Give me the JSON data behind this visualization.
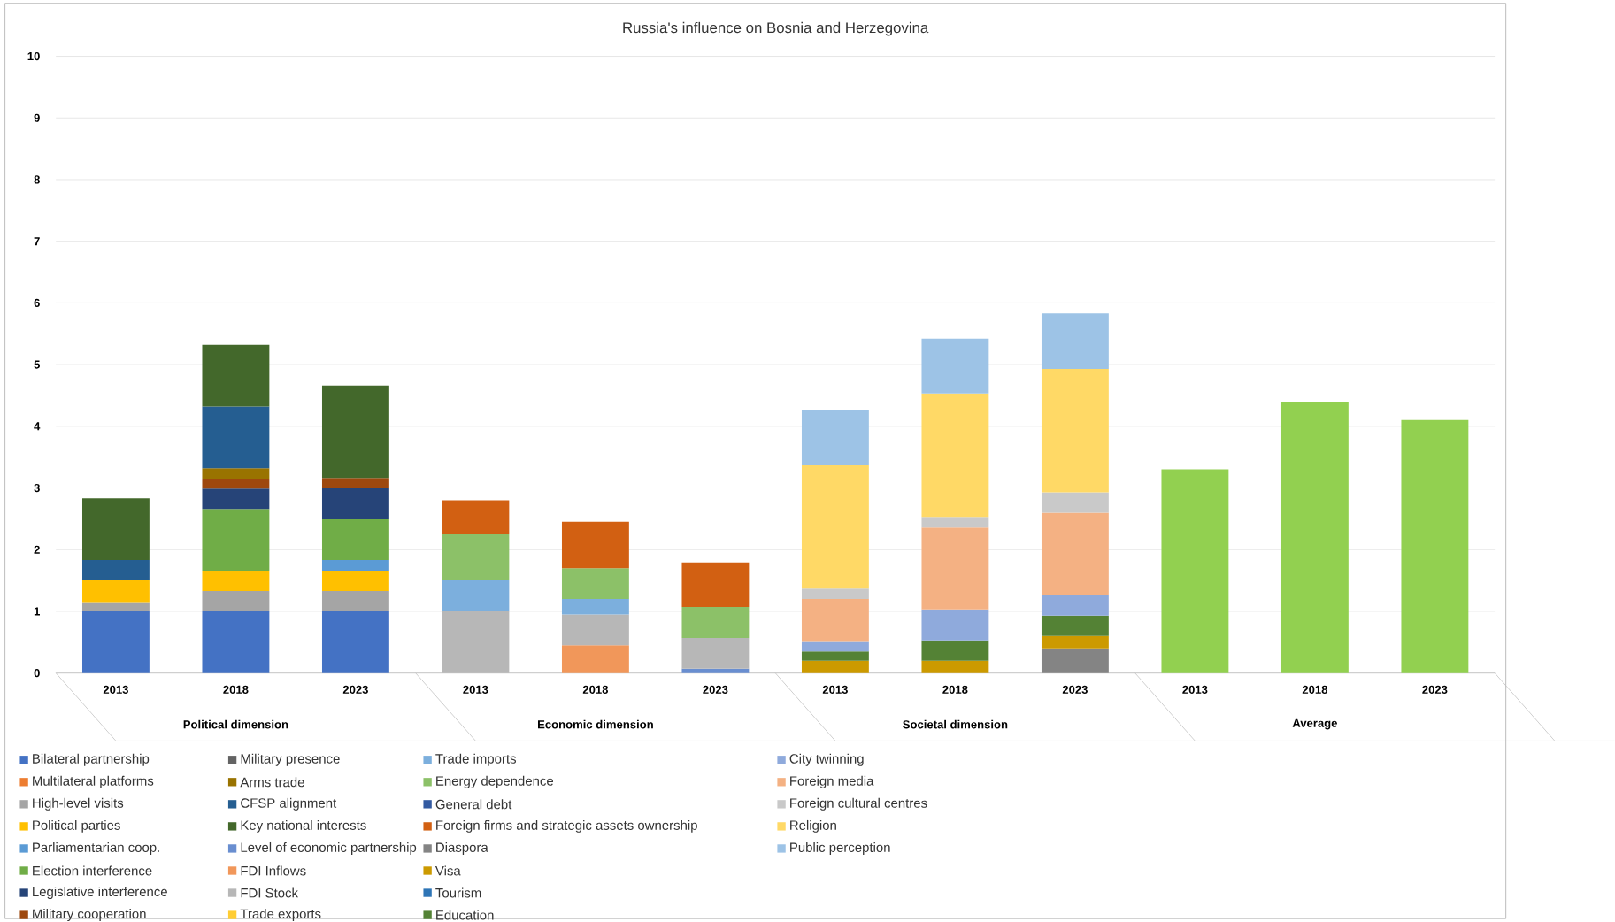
{
  "chart_data": {
    "type": "bar",
    "title": "Russia's influence on Bosnia and Herzegovina",
    "stacked": true,
    "grid": "y",
    "legend": "bottom",
    "categories": [
      "2013",
      "2018",
      "2023",
      "2013",
      "2018",
      "2023",
      "2013",
      "2018",
      "2023",
      "2013",
      "2018",
      "2023"
    ],
    "annotations": [
      "Political dimension",
      "Economic dimension",
      "Societal dimension",
      "Average"
    ],
    "ylim": [
      0,
      10
    ],
    "yticks": [
      0,
      1,
      2,
      3,
      4,
      5,
      6,
      7,
      8,
      9,
      10
    ],
    "series": [
      {
        "name": "Bilateral partnership",
        "color": "#4472c4",
        "values": [
          1,
          1,
          1,
          null,
          null,
          null,
          null,
          null,
          null,
          null,
          null,
          null
        ]
      },
      {
        "name": "Multilateral platforms",
        "color": "#ed7d31",
        "values": [
          null,
          null,
          null,
          null,
          null,
          null,
          null,
          null,
          null,
          null,
          null,
          null
        ]
      },
      {
        "name": "High-level visits",
        "color": "#a5a5a5",
        "values": [
          0.15,
          0.33,
          0.33,
          null,
          null,
          null,
          null,
          null,
          null,
          null,
          null,
          null
        ]
      },
      {
        "name": "Political parties",
        "color": "#ffc000",
        "values": [
          0.35,
          0.33,
          0.33,
          null,
          null,
          null,
          null,
          null,
          null,
          null,
          null,
          null
        ]
      },
      {
        "name": "Parliamentarian coop.",
        "color": "#5b9bd5",
        "values": [
          null,
          null,
          0.17,
          null,
          null,
          null,
          null,
          null,
          null,
          null,
          null,
          null
        ]
      },
      {
        "name": "Election interference",
        "color": "#70ad47",
        "values": [
          null,
          1.0,
          0.67,
          null,
          null,
          null,
          null,
          null,
          null,
          null,
          null,
          null
        ]
      },
      {
        "name": "Legislative interference",
        "color": "#264478",
        "values": [
          null,
          0.33,
          0.5,
          null,
          null,
          null,
          null,
          null,
          null,
          null,
          null,
          null
        ]
      },
      {
        "name": "Military  cooperation",
        "color": "#9e480e",
        "values": [
          null,
          0.16,
          0.16,
          null,
          null,
          null,
          null,
          null,
          null,
          null,
          null,
          null
        ]
      },
      {
        "name": "Military presence",
        "color": "#636363",
        "values": [
          null,
          null,
          null,
          null,
          null,
          null,
          null,
          null,
          null,
          null,
          null,
          null
        ]
      },
      {
        "name": "Arms trade",
        "color": "#997300",
        "values": [
          null,
          0.17,
          null,
          null,
          null,
          null,
          null,
          null,
          null,
          null,
          null,
          null
        ]
      },
      {
        "name": "CFSP alignment",
        "color": "#255e91",
        "values": [
          0.33,
          1.0,
          null,
          null,
          null,
          null,
          null,
          null,
          null,
          null,
          null,
          null
        ]
      },
      {
        "name": "Key national interests",
        "color": "#43682b",
        "values": [
          1.0,
          1.0,
          1.5,
          null,
          null,
          null,
          null,
          null,
          null,
          null,
          null,
          null
        ]
      },
      {
        "name": "Level of economic partnership",
        "color": "#698ed0",
        "values": [
          null,
          null,
          null,
          null,
          null,
          0.07,
          null,
          null,
          null,
          null,
          null,
          null
        ]
      },
      {
        "name": "FDI Inflows",
        "color": "#f1975a",
        "values": [
          null,
          null,
          null,
          null,
          0.45,
          null,
          null,
          null,
          null,
          null,
          null,
          null
        ]
      },
      {
        "name": "FDI Stock",
        "color": "#b7b7b7",
        "values": [
          null,
          null,
          null,
          1.0,
          0.5,
          0.5,
          null,
          null,
          null,
          null,
          null,
          null
        ]
      },
      {
        "name": "Trade exports",
        "color": "#ffcd33",
        "values": [
          null,
          null,
          null,
          null,
          null,
          null,
          null,
          null,
          null,
          null,
          null,
          null
        ]
      },
      {
        "name": "Trade imports",
        "color": "#7cafdd",
        "values": [
          null,
          null,
          null,
          0.5,
          0.25,
          null,
          null,
          null,
          null,
          null,
          null,
          null
        ]
      },
      {
        "name": "Energy dependence",
        "color": "#8cc168",
        "values": [
          null,
          null,
          null,
          0.75,
          0.5,
          0.5,
          null,
          null,
          null,
          null,
          null,
          null
        ]
      },
      {
        "name": "General debt",
        "color": "#335aa1",
        "values": [
          null,
          null,
          null,
          null,
          null,
          null,
          null,
          null,
          null,
          null,
          null,
          null
        ]
      },
      {
        "name": "Foreign firms and strategic assets ownership",
        "color": "#d26012",
        "values": [
          null,
          null,
          null,
          0.55,
          0.75,
          0.72,
          null,
          null,
          null,
          null,
          null,
          null
        ]
      },
      {
        "name": "Diaspora",
        "color": "#848484",
        "values": [
          null,
          null,
          null,
          null,
          null,
          null,
          null,
          null,
          0.4,
          null,
          null,
          null
        ]
      },
      {
        "name": "Visa",
        "color": "#cc9a00",
        "values": [
          null,
          null,
          null,
          null,
          null,
          null,
          0.2,
          0.2,
          0.2,
          null,
          null,
          null
        ]
      },
      {
        "name": "Tourism",
        "color": "#2e75b6",
        "values": [
          null,
          null,
          null,
          null,
          null,
          null,
          null,
          null,
          null,
          null,
          null,
          null
        ]
      },
      {
        "name": "Education",
        "color": "#548235",
        "values": [
          null,
          null,
          null,
          null,
          null,
          null,
          0.15,
          0.33,
          0.33,
          null,
          null,
          null
        ]
      },
      {
        "name": "City twinning",
        "color": "#8faadc",
        "values": [
          null,
          null,
          null,
          null,
          null,
          null,
          0.17,
          0.5,
          0.33,
          null,
          null,
          null
        ]
      },
      {
        "name": "Foreign media",
        "color": "#f4b183",
        "values": [
          null,
          null,
          null,
          null,
          null,
          null,
          0.68,
          1.33,
          1.34,
          null,
          null,
          null
        ]
      },
      {
        "name": "Foreign cultural centres",
        "color": "#c9c9c9",
        "values": [
          null,
          null,
          null,
          null,
          null,
          null,
          0.17,
          0.17,
          0.33,
          null,
          null,
          null
        ]
      },
      {
        "name": "Religion",
        "color": "#ffd966",
        "values": [
          null,
          null,
          null,
          null,
          null,
          null,
          2.0,
          2.0,
          2.0,
          null,
          null,
          null
        ]
      },
      {
        "name": "Public perception",
        "color": "#9dc3e6",
        "values": [
          null,
          null,
          null,
          null,
          null,
          null,
          0.9,
          0.89,
          0.9,
          null,
          null,
          null
        ]
      },
      {
        "color": "#92d050",
        "values": [
          null,
          null,
          null,
          null,
          null,
          null,
          null,
          null,
          null,
          3.3,
          4.4,
          4.1
        ]
      }
    ]
  }
}
